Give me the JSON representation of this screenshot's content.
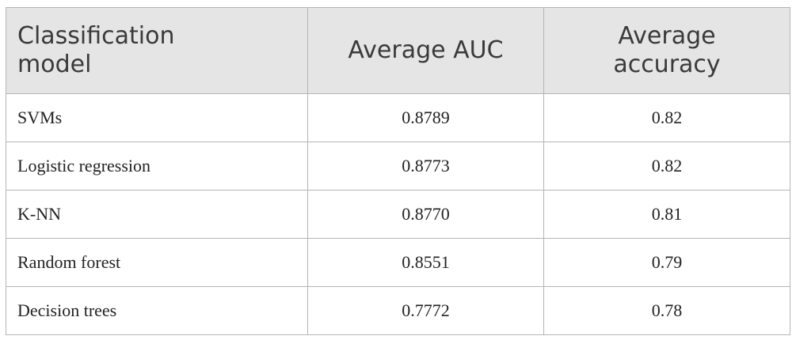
{
  "table": {
    "header": [
      [
        "Classification",
        "model"
      ],
      [
        "Average AUC"
      ],
      [
        "Average",
        "accuracy"
      ]
    ],
    "rows": [
      [
        "SVMs",
        "0.8789",
        "0.82"
      ],
      [
        "Logistic regression",
        "0.8773",
        "0.82"
      ],
      [
        "K-NN",
        "0.8770",
        "0.81"
      ],
      [
        "Random forest",
        "0.8551",
        "0.79"
      ],
      [
        "Decision trees",
        "0.7772",
        "0.78"
      ]
    ]
  }
}
